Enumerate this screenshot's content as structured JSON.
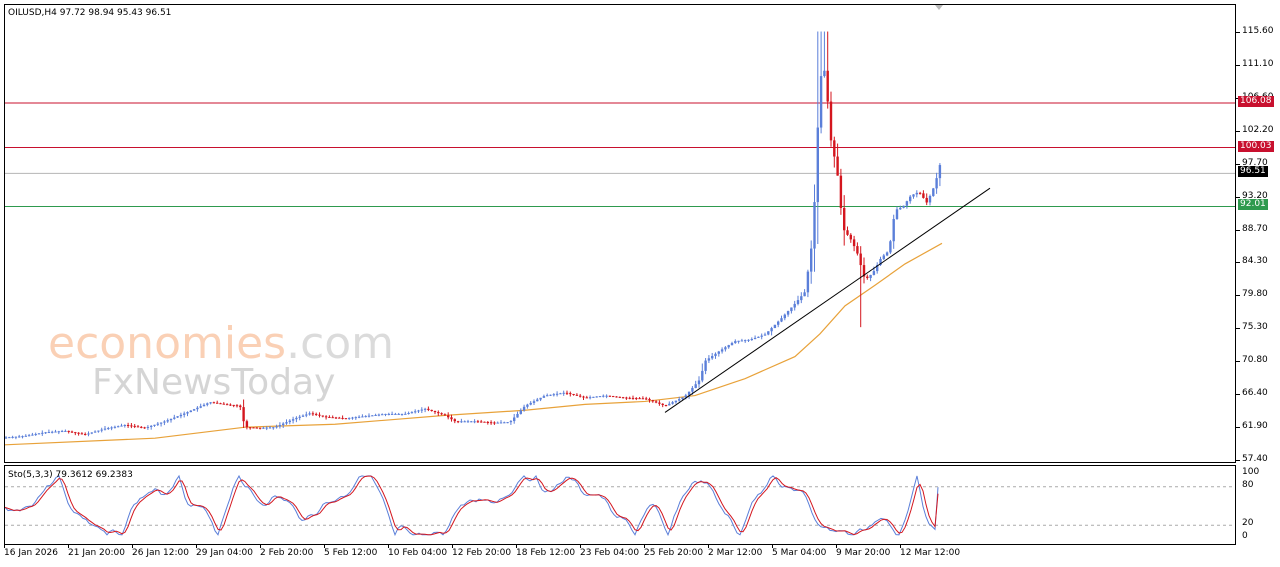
{
  "header": {
    "symbol_info": "OILUSD,H4  97.72 98.94 95.43 96.51"
  },
  "oscillator": {
    "label": "Sto(5,3,3) 79.3612 69.2383",
    "axis": [
      "100",
      "80",
      "20",
      "0"
    ]
  },
  "watermark": {
    "brand_a": "economies",
    "brand_b": ".com",
    "brand_c": "FxNewsToday"
  },
  "price_axis": [
    "115.60",
    "111.10",
    "106.60",
    "102.20",
    "97.70",
    "93.20",
    "88.70",
    "84.30",
    "79.80",
    "75.30",
    "70.80",
    "66.40",
    "61.90",
    "57.40"
  ],
  "levels": [
    {
      "label": "106.08",
      "value": 106.08,
      "color": "#c8102e"
    },
    {
      "label": "100.03",
      "value": 100.03,
      "color": "#c8102e"
    },
    {
      "label": "96.51",
      "value": 96.51,
      "color": "#000000"
    },
    {
      "label": "92.01",
      "value": 92.01,
      "color": "#2e9a4e"
    }
  ],
  "time_axis": [
    "16 Jan 2026",
    "21 Jan 20:00",
    "26 Jan 12:00",
    "29 Jan 04:00",
    "2 Feb 20:00",
    "5 Feb 12:00",
    "10 Feb 04:00",
    "12 Feb 20:00",
    "18 Feb 12:00",
    "23 Feb 04:00",
    "25 Feb 20:00",
    "2 Mar 12:00",
    "5 Mar 04:00",
    "9 Mar 20:00",
    "12 Mar 12:00"
  ],
  "chart_data": {
    "type": "candlestick",
    "instrument": "OILUSD",
    "timeframe": "H4",
    "last_bar": {
      "open": 97.72,
      "high": 98.94,
      "low": 95.43,
      "close": 96.51
    },
    "ylim": [
      57.4,
      117.5
    ],
    "x_tick_labels": [
      "16 Jan 2026",
      "21 Jan 20:00",
      "26 Jan 12:00",
      "29 Jan 04:00",
      "2 Feb 20:00",
      "5 Feb 12:00",
      "10 Feb 04:00",
      "12 Feb 20:00",
      "18 Feb 12:00",
      "23 Feb 04:00",
      "25 Feb 20:00",
      "2 Mar 12:00",
      "5 Mar 04:00",
      "9 Mar 20:00",
      "12 Mar 12:00"
    ],
    "horizontal_levels": [
      106.08,
      100.03,
      96.51,
      92.01
    ],
    "close_path": [
      [
        0,
        60.6
      ],
      [
        20,
        60.8
      ],
      [
        40,
        61.3
      ],
      [
        60,
        61.5
      ],
      [
        80,
        61.0
      ],
      [
        100,
        61.8
      ],
      [
        120,
        62.3
      ],
      [
        140,
        61.9
      ],
      [
        160,
        62.8
      ],
      [
        180,
        63.9
      ],
      [
        195,
        64.8
      ],
      [
        205,
        65.4
      ],
      [
        220,
        65.1
      ],
      [
        235,
        64.9
      ],
      [
        240,
        62.0
      ],
      [
        255,
        61.9
      ],
      [
        270,
        62.0
      ],
      [
        290,
        63.2
      ],
      [
        305,
        63.9
      ],
      [
        320,
        63.4
      ],
      [
        340,
        63.2
      ],
      [
        360,
        63.5
      ],
      [
        380,
        63.8
      ],
      [
        400,
        63.8
      ],
      [
        420,
        64.5
      ],
      [
        440,
        63.6
      ],
      [
        450,
        62.8
      ],
      [
        470,
        62.8
      ],
      [
        490,
        62.6
      ],
      [
        505,
        62.7
      ],
      [
        520,
        64.9
      ],
      [
        540,
        66.3
      ],
      [
        560,
        66.7
      ],
      [
        580,
        66.0
      ],
      [
        600,
        66.3
      ],
      [
        620,
        66.0
      ],
      [
        640,
        65.9
      ],
      [
        660,
        64.9
      ],
      [
        680,
        66.2
      ],
      [
        695,
        68.5
      ],
      [
        700,
        71.0
      ],
      [
        715,
        72.4
      ],
      [
        730,
        73.7
      ],
      [
        745,
        73.9
      ],
      [
        760,
        74.6
      ],
      [
        775,
        76.6
      ],
      [
        790,
        78.8
      ],
      [
        800,
        80.4
      ],
      [
        808,
        88.0
      ],
      [
        815,
        109.5
      ],
      [
        820,
        110.6
      ],
      [
        826,
        101.0
      ],
      [
        832,
        97.0
      ],
      [
        838,
        89.0
      ],
      [
        846,
        87.5
      ],
      [
        852,
        85.8
      ],
      [
        860,
        82.0
      ],
      [
        868,
        83.0
      ],
      [
        876,
        85.0
      ],
      [
        884,
        86.0
      ],
      [
        890,
        91.5
      ],
      [
        898,
        92.0
      ],
      [
        906,
        93.5
      ],
      [
        914,
        94.0
      ],
      [
        922,
        92.5
      ],
      [
        930,
        95.0
      ],
      [
        935,
        97.7
      ],
      [
        937,
        96.51
      ]
    ],
    "moving_average": [
      [
        0,
        59.6
      ],
      [
        150,
        60.5
      ],
      [
        240,
        62.0
      ],
      [
        330,
        62.4
      ],
      [
        440,
        63.6
      ],
      [
        520,
        64.3
      ],
      [
        580,
        65.1
      ],
      [
        640,
        65.5
      ],
      [
        690,
        66.3
      ],
      [
        740,
        68.6
      ],
      [
        790,
        71.6
      ],
      [
        815,
        74.7
      ],
      [
        840,
        78.5
      ],
      [
        870,
        81.3
      ],
      [
        900,
        84.2
      ],
      [
        937,
        87.0
      ]
    ],
    "trendline": [
      [
        660,
        64.0
      ],
      [
        985,
        94.5
      ]
    ],
    "stochastic": {
      "name": "Sto(5,3,3)",
      "main": 79.3612,
      "signal": 69.2383,
      "levels": [
        80,
        20
      ]
    }
  }
}
